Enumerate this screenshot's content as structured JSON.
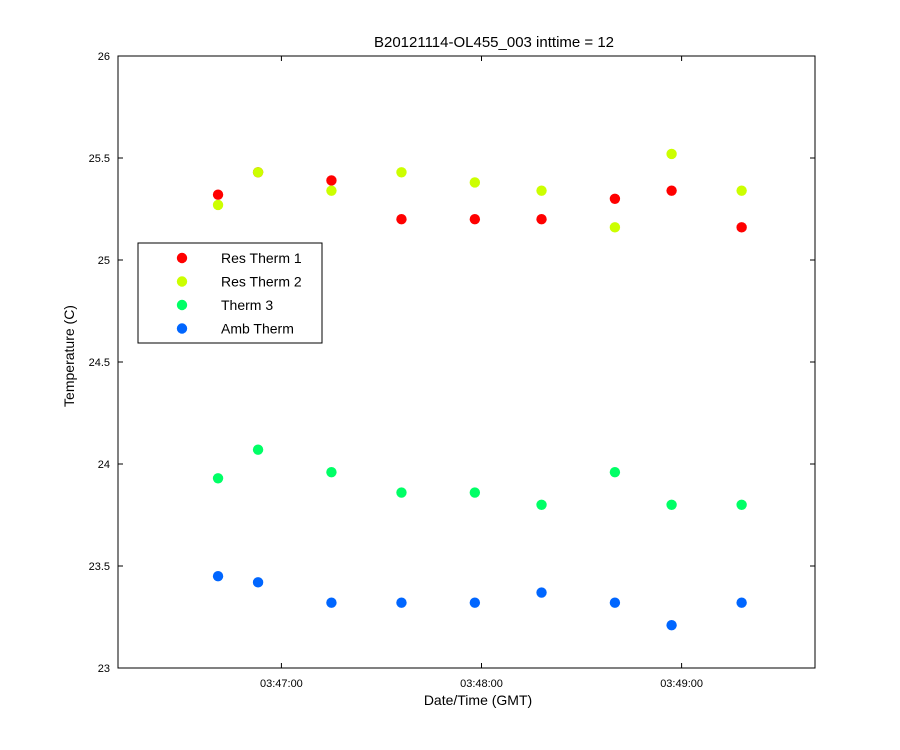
{
  "chart_data": {
    "type": "scatter",
    "title": "B20121114-OL455_003 inttime = 12",
    "xlabel": "Date/Time (GMT)",
    "ylabel": "Temperature (C)",
    "x_unit": "time (GMT)",
    "xlim": [
      "03:46:11",
      "03:49:40"
    ],
    "ylim": [
      23,
      26
    ],
    "x_ticks": [
      "03:47:00",
      "03:48:00",
      "03:49:00"
    ],
    "y_ticks": [
      "23",
      "23.5",
      "24",
      "24.5",
      "25",
      "25.5",
      "26"
    ],
    "grid": false,
    "legend_position": "left",
    "x": [
      "03:46:41",
      "03:46:53",
      "03:47:15",
      "03:47:36",
      "03:47:58",
      "03:48:18",
      "03:48:40",
      "03:48:57",
      "03:49:18"
    ],
    "series": [
      {
        "name": "Res Therm 1",
        "color": "#ff0000",
        "values": [
          25.32,
          25.43,
          25.39,
          25.2,
          25.2,
          25.2,
          25.3,
          25.34,
          25.16
        ]
      },
      {
        "name": "Res Therm 2",
        "color": "#ccff00",
        "values": [
          25.27,
          25.43,
          25.34,
          25.43,
          25.38,
          25.34,
          25.16,
          25.52,
          25.34
        ]
      },
      {
        "name": "Therm 3",
        "color": "#00ff66",
        "values": [
          23.93,
          24.07,
          23.96,
          23.86,
          23.86,
          23.8,
          23.96,
          23.8,
          23.8
        ]
      },
      {
        "name": "Amb Therm",
        "color": "#0066ff",
        "values": [
          23.45,
          23.42,
          23.32,
          23.32,
          23.32,
          23.37,
          23.32,
          23.21,
          23.32
        ]
      }
    ]
  }
}
